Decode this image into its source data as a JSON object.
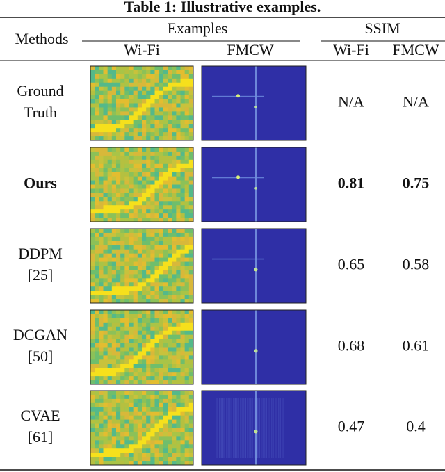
{
  "title": "Table 1: Illustrative examples.",
  "header": {
    "methods": "Methods",
    "examples": "Examples",
    "ssim": "SSIM",
    "sub": [
      "Wi-Fi",
      "FMCW",
      "Wi-Fi",
      "FMCW"
    ]
  },
  "rows": [
    {
      "method": [
        "Ground",
        "Truth"
      ],
      "ssim": [
        "N/A",
        "N/A"
      ]
    },
    {
      "method": [
        "Ours"
      ],
      "ssim": [
        0.81,
        0.75
      ]
    },
    {
      "method": [
        "DDPM",
        "[25]"
      ],
      "ssim": [
        0.65,
        0.58
      ]
    },
    {
      "method": [
        "DCGAN",
        "[50]"
      ],
      "ssim": [
        0.68,
        0.61
      ]
    },
    {
      "method": [
        "CVAE",
        "[61]"
      ],
      "ssim": [
        0.47,
        0.4
      ]
    }
  ]
}
